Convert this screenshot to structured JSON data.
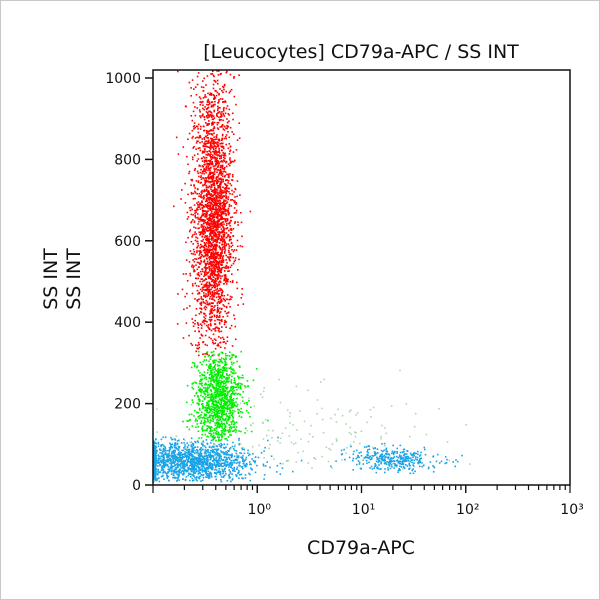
{
  "chart_data": {
    "type": "scatter",
    "title": "[Leucocytes] CD79a-APC / SS INT",
    "xlabel": "CD79a-APC",
    "ylabel": [
      "SS INT",
      "SS INT"
    ],
    "xscale": "log",
    "xlim": [
      0.1,
      1000
    ],
    "ylim": [
      0,
      1020
    ],
    "xticks": [
      {
        "value": 1,
        "label": "10⁰"
      },
      {
        "value": 10,
        "label": "10¹"
      },
      {
        "value": 100,
        "label": "10²"
      },
      {
        "value": 1000,
        "label": "10³"
      }
    ],
    "yticks": [
      {
        "value": 0,
        "label": "0"
      },
      {
        "value": 200,
        "label": "200"
      },
      {
        "value": 400,
        "label": "400"
      },
      {
        "value": 600,
        "label": "600"
      },
      {
        "value": 800,
        "label": "800"
      },
      {
        "value": 1000,
        "label": "1000"
      }
    ],
    "grid": false,
    "populations": [
      {
        "color": "#ff0000",
        "x_center": 0.37,
        "x_log_sd": 0.1,
        "y_center": 660,
        "y_sd": 170,
        "y_range": [
          320,
          1020
        ],
        "count": 2600
      },
      {
        "color": "#00ee00",
        "x_center": 0.42,
        "x_log_sd": 0.11,
        "y_center": 215,
        "y_sd": 60,
        "y_range": [
          110,
          330
        ],
        "count": 1100
      },
      {
        "color": "#1aa3e6",
        "x_center": 0.22,
        "x_log_sd": 0.3,
        "y_center": 60,
        "y_sd": 25,
        "y_range": [
          10,
          120
        ],
        "count": 1500
      },
      {
        "color": "#1aa3e6",
        "x_center": 20,
        "x_log_sd": 0.22,
        "y_center": 65,
        "y_sd": 15,
        "y_range": [
          30,
          110
        ],
        "count": 350
      },
      {
        "color": "#b0d8b0",
        "x_center": 3,
        "x_log_sd": 0.6,
        "y_center": 120,
        "y_sd": 60,
        "y_range": [
          40,
          300
        ],
        "count": 150
      }
    ]
  }
}
